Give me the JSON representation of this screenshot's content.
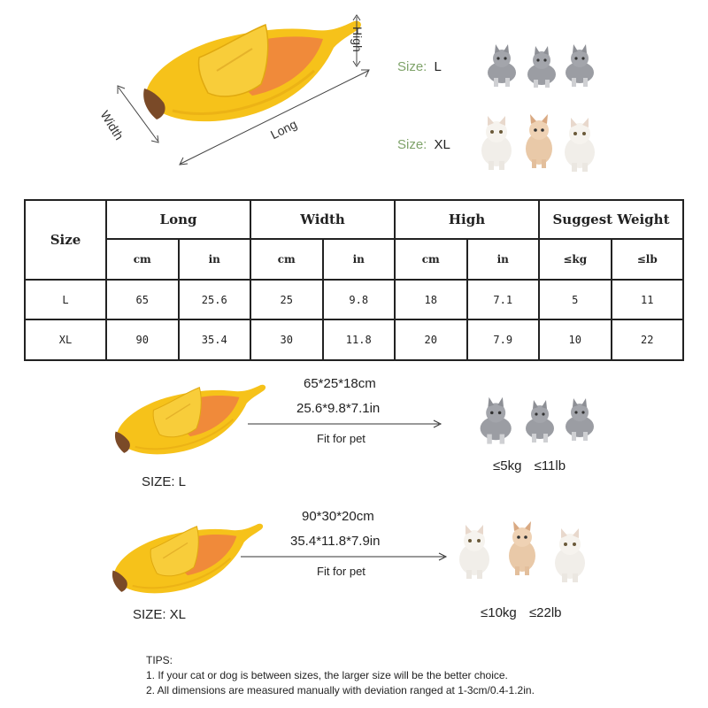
{
  "diagram": {
    "high_label": "High",
    "width_label": "Width",
    "long_label": "Long",
    "size_l_key": "Size:",
    "size_l_val": "L",
    "size_xl_key": "Size:",
    "size_xl_val": "XL"
  },
  "table": {
    "size_header": "Size",
    "groups": [
      "Long",
      "Width",
      "High",
      "Suggest Weight"
    ],
    "units": [
      "cm",
      "in",
      "cm",
      "in",
      "cm",
      "in",
      "≤kg",
      "≤lb"
    ],
    "rows": [
      {
        "size": "L",
        "cells": [
          "65",
          "25.6",
          "25",
          "9.8",
          "18",
          "7.1",
          "5",
          "11"
        ]
      },
      {
        "size": "XL",
        "cells": [
          "90",
          "35.4",
          "30",
          "11.8",
          "20",
          "7.9",
          "10",
          "22"
        ]
      }
    ]
  },
  "size_l": {
    "label": "SIZE: L",
    "dims_cm": "65*25*18cm",
    "dims_in": "25.6*9.8*7.1in",
    "fit": "Fit for pet",
    "weight_kg": "≤5kg",
    "weight_lb": "≤11lb"
  },
  "size_xl": {
    "label": "SIZE: XL",
    "dims_cm": "90*30*20cm",
    "dims_in": "35.4*11.8*7.9in",
    "fit": "Fit for pet",
    "weight_kg": "≤10kg",
    "weight_lb": "≤22lb"
  },
  "tips": {
    "title": "TIPS:",
    "line1": "1. If your cat or dog is between sizes, the larger size will be the better choice.",
    "line2": "2. All dimensions are measured manually with deviation ranged at 1-3cm/0.4-1.2in."
  },
  "colors": {
    "bed_yellow": "#f6c21a",
    "bed_inner": "#f08a3a",
    "bed_tip": "#7a4a28",
    "size_key_green": "#7fa36a"
  }
}
